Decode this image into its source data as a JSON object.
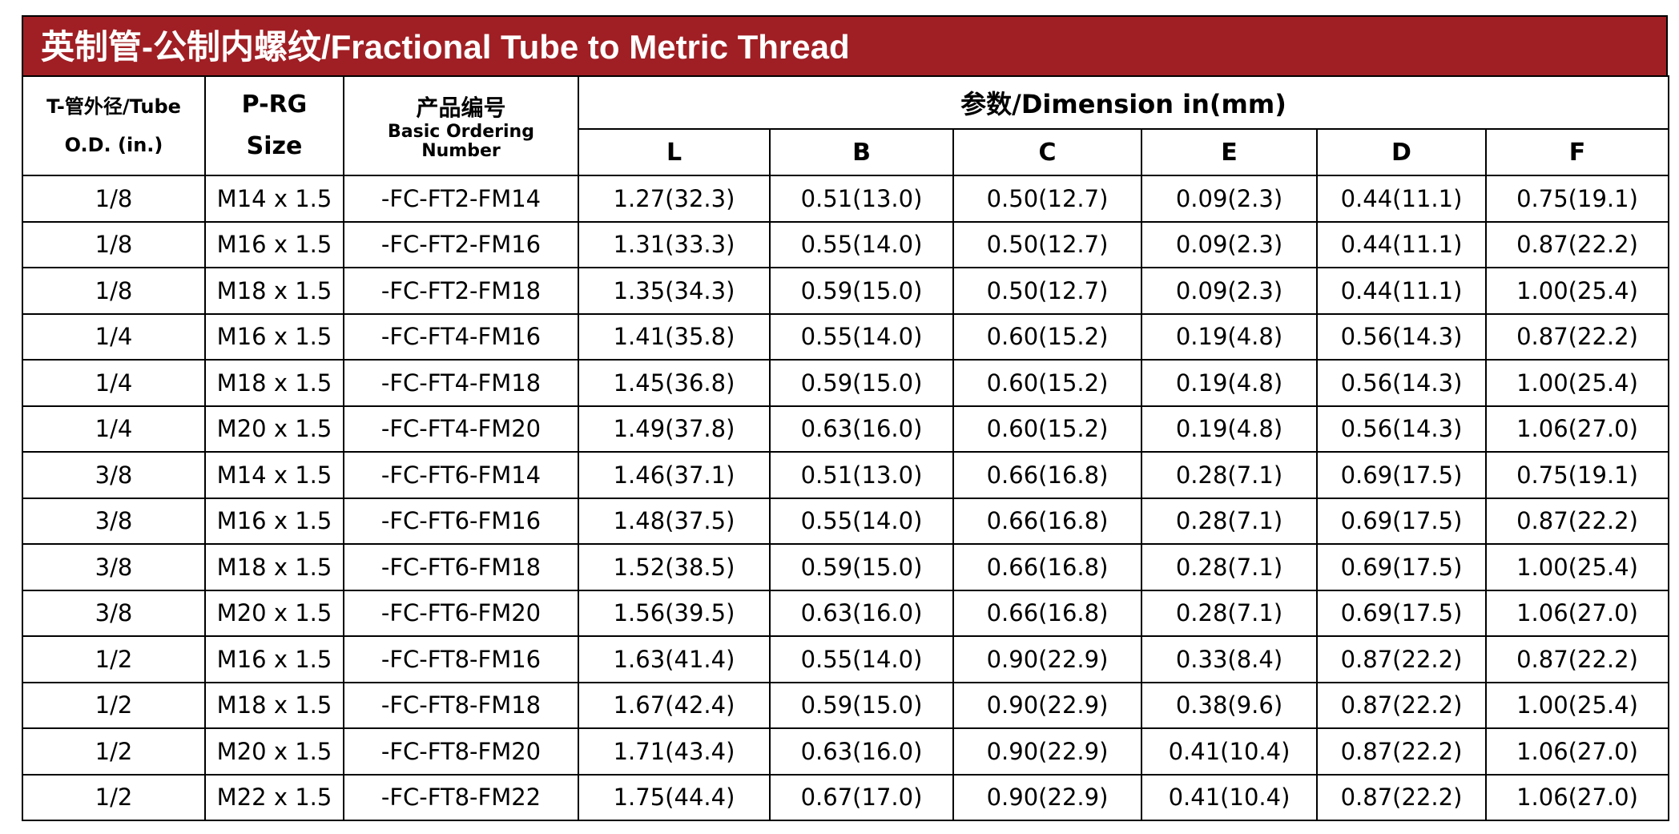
{
  "title": "英制管-公制内螺纹/Fractional Tube to Metric Thread",
  "header": {
    "tube_od": "T-管外径/Tube O.D.  (in.)",
    "size": "P-RG Size",
    "ordering_cn": "产品编号",
    "ordering_en": "Basic Ordering Number",
    "dimension": "参数/Dimension  in(mm)",
    "dims": [
      "L",
      "B",
      "C",
      "E",
      "D",
      "F"
    ]
  },
  "rows": [
    [
      "1/8",
      "M14 x 1.5",
      "-FC-FT2-FM14",
      "1.27(32.3)",
      "0.51(13.0)",
      "0.50(12.7)",
      "0.09(2.3)",
      "0.44(11.1)",
      "0.75(19.1)"
    ],
    [
      "1/8",
      "M16 x 1.5",
      "-FC-FT2-FM16",
      "1.31(33.3)",
      "0.55(14.0)",
      "0.50(12.7)",
      "0.09(2.3)",
      "0.44(11.1)",
      "0.87(22.2)"
    ],
    [
      "1/8",
      "M18 x 1.5",
      "-FC-FT2-FM18",
      "1.35(34.3)",
      "0.59(15.0)",
      "0.50(12.7)",
      "0.09(2.3)",
      "0.44(11.1)",
      "1.00(25.4)"
    ],
    [
      "1/4",
      "M16 x 1.5",
      "-FC-FT4-FM16",
      "1.41(35.8)",
      "0.55(14.0)",
      "0.60(15.2)",
      "0.19(4.8)",
      "0.56(14.3)",
      "0.87(22.2)"
    ],
    [
      "1/4",
      "M18 x 1.5",
      "-FC-FT4-FM18",
      "1.45(36.8)",
      "0.59(15.0)",
      "0.60(15.2)",
      "0.19(4.8)",
      "0.56(14.3)",
      "1.00(25.4)"
    ],
    [
      "1/4",
      "M20 x 1.5",
      "-FC-FT4-FM20",
      "1.49(37.8)",
      "0.63(16.0)",
      "0.60(15.2)",
      "0.19(4.8)",
      "0.56(14.3)",
      "1.06(27.0)"
    ],
    [
      "3/8",
      "M14 x 1.5",
      "-FC-FT6-FM14",
      "1.46(37.1)",
      "0.51(13.0)",
      "0.66(16.8)",
      "0.28(7.1)",
      "0.69(17.5)",
      "0.75(19.1)"
    ],
    [
      "3/8",
      "M16 x 1.5",
      "-FC-FT6-FM16",
      "1.48(37.5)",
      "0.55(14.0)",
      "0.66(16.8)",
      "0.28(7.1)",
      "0.69(17.5)",
      "0.87(22.2)"
    ],
    [
      "3/8",
      "M18 x 1.5",
      "-FC-FT6-FM18",
      "1.52(38.5)",
      "0.59(15.0)",
      "0.66(16.8)",
      "0.28(7.1)",
      "0.69(17.5)",
      "1.00(25.4)"
    ],
    [
      "3/8",
      "M20 x 1.5",
      "-FC-FT6-FM20",
      "1.56(39.5)",
      "0.63(16.0)",
      "0.66(16.8)",
      "0.28(7.1)",
      "0.69(17.5)",
      "1.06(27.0)"
    ],
    [
      "1/2",
      "M16 x 1.5",
      "-FC-FT8-FM16",
      "1.63(41.4)",
      "0.55(14.0)",
      "0.90(22.9)",
      "0.33(8.4)",
      "0.87(22.2)",
      "0.87(22.2)"
    ],
    [
      "1/2",
      "M18 x 1.5",
      "-FC-FT8-FM18",
      "1.67(42.4)",
      "0.59(15.0)",
      "0.90(22.9)",
      "0.38(9.6)",
      "0.87(22.2)",
      "1.00(25.4)"
    ],
    [
      "1/2",
      "M20 x 1.5",
      "-FC-FT8-FM20",
      "1.71(43.4)",
      "0.63(16.0)",
      "0.90(22.9)",
      "0.41(10.4)",
      "0.87(22.2)",
      "1.06(27.0)"
    ],
    [
      "1/2",
      "M22 x 1.5",
      "-FC-FT8-FM22",
      "1.75(44.4)",
      "0.67(17.0)",
      "0.90(22.9)",
      "0.41(10.4)",
      "0.87(22.2)",
      "1.06(27.0)"
    ]
  ]
}
